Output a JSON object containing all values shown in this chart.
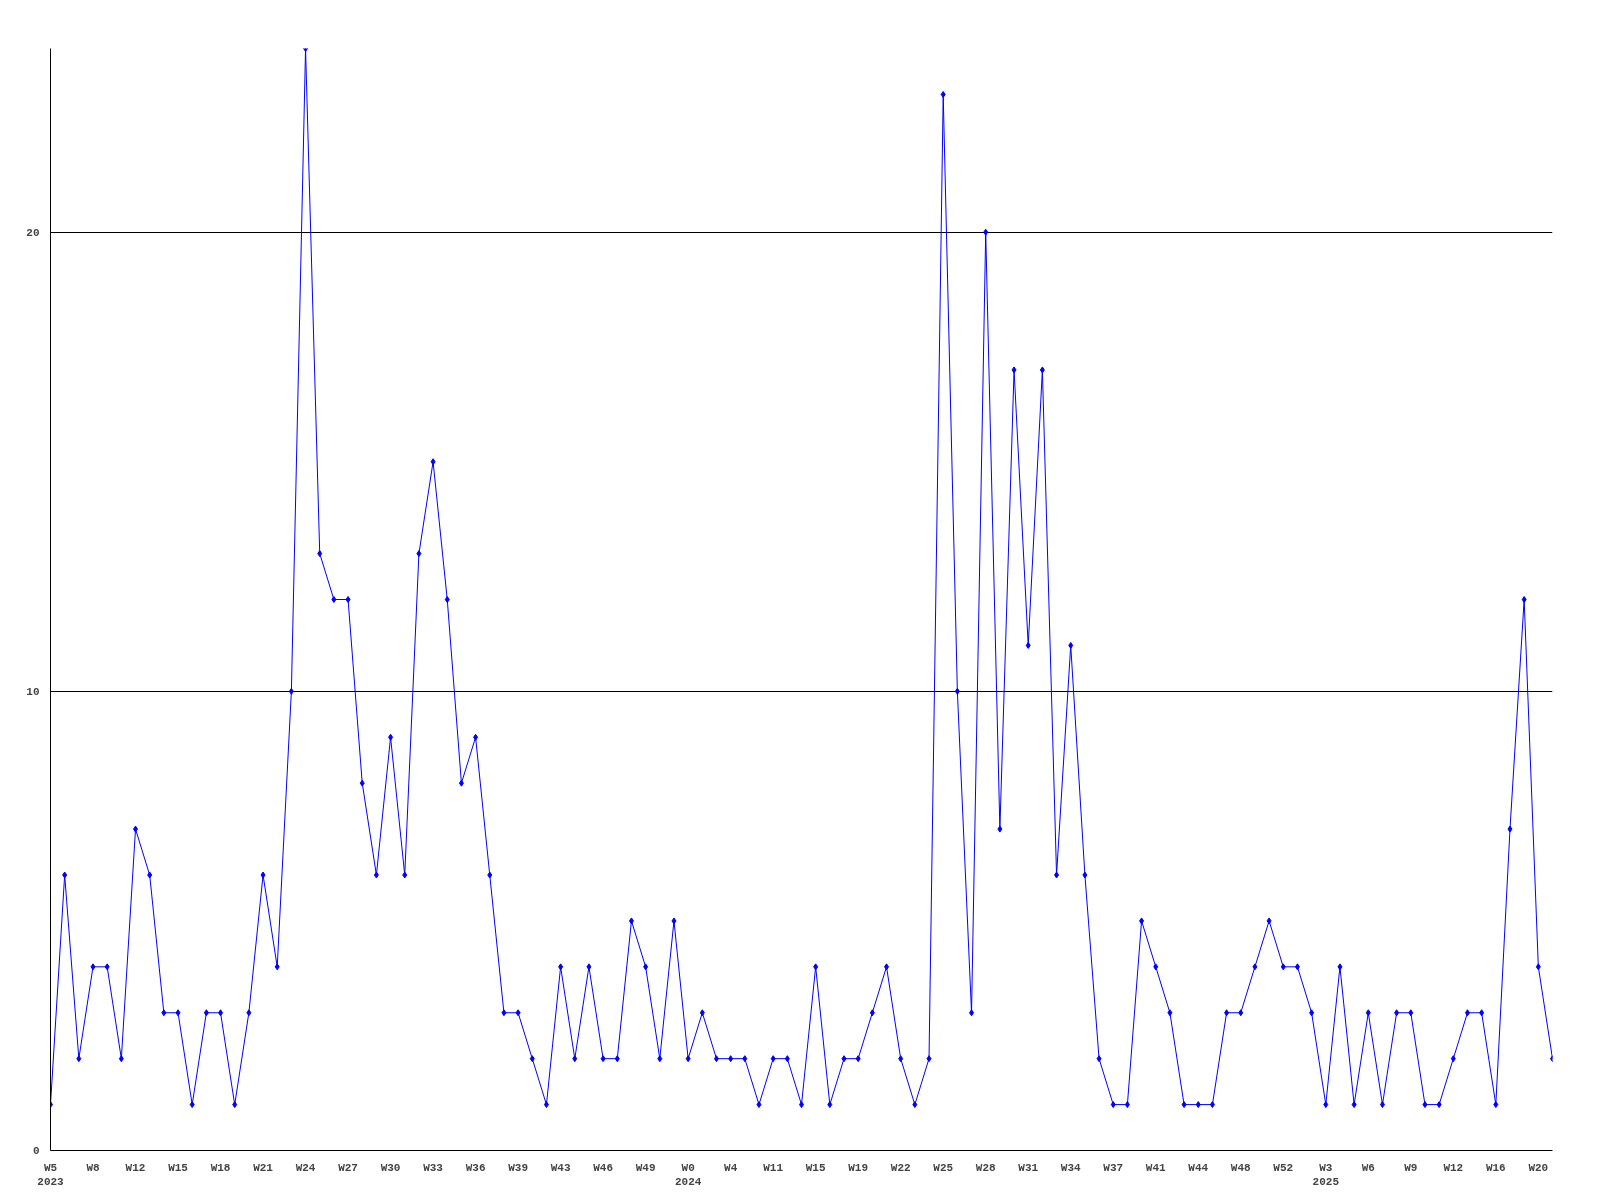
{
  "chart_data": {
    "type": "line",
    "categories": [
      "W5\n2023",
      null,
      null,
      "W8",
      null,
      null,
      "W12",
      null,
      null,
      "W15",
      null,
      null,
      "W18",
      null,
      null,
      "W21",
      null,
      null,
      "W24",
      null,
      null,
      "W27",
      null,
      null,
      "W30",
      null,
      null,
      "W33",
      null,
      null,
      "W36",
      null,
      null,
      "W39",
      null,
      null,
      "W43",
      null,
      null,
      "W46",
      null,
      null,
      "W49",
      null,
      null,
      "W0\n2024",
      null,
      null,
      "W4",
      null,
      null,
      "W11",
      null,
      null,
      "W15",
      null,
      null,
      "W19",
      null,
      null,
      "W22",
      null,
      null,
      "W25",
      null,
      null,
      "W28",
      null,
      null,
      "W31",
      null,
      null,
      "W34",
      null,
      null,
      "W37",
      null,
      null,
      "W41",
      null,
      null,
      "W44",
      null,
      null,
      "W48",
      null,
      null,
      "W52",
      null,
      null,
      "W3\n2025",
      null,
      null,
      "W6",
      null,
      null,
      "W9",
      null,
      null,
      "W12",
      null,
      null,
      "W16",
      null,
      null,
      "W20",
      null
    ],
    "series": [
      {
        "color": "#0000ff",
        "values": [
          1,
          6,
          2,
          4,
          4,
          2,
          7,
          6,
          3,
          3,
          1,
          3,
          3,
          1,
          3,
          6,
          4,
          10,
          24,
          13,
          12,
          12,
          8,
          6,
          9,
          6,
          13,
          15,
          12,
          8,
          9,
          6,
          3,
          3,
          2,
          1,
          4,
          2,
          4,
          2,
          2,
          5,
          4,
          2,
          5,
          2,
          3,
          2,
          2,
          2,
          1,
          2,
          2,
          1,
          4,
          1,
          2,
          2,
          3,
          4,
          2,
          1,
          2,
          23,
          10,
          3,
          20,
          7,
          17,
          11,
          17,
          6,
          11,
          6,
          2,
          1,
          1,
          5,
          4,
          3,
          1,
          1,
          1,
          3,
          3,
          4,
          5,
          4,
          4,
          3,
          1,
          4,
          1,
          3,
          1,
          3,
          3,
          1,
          1,
          2,
          3,
          3,
          1,
          7,
          12,
          4,
          2
        ]
      }
    ],
    "ylim": [
      0,
      24
    ],
    "yticks": [
      0,
      10,
      20
    ],
    "grid": "y",
    "marker": "diamond"
  }
}
